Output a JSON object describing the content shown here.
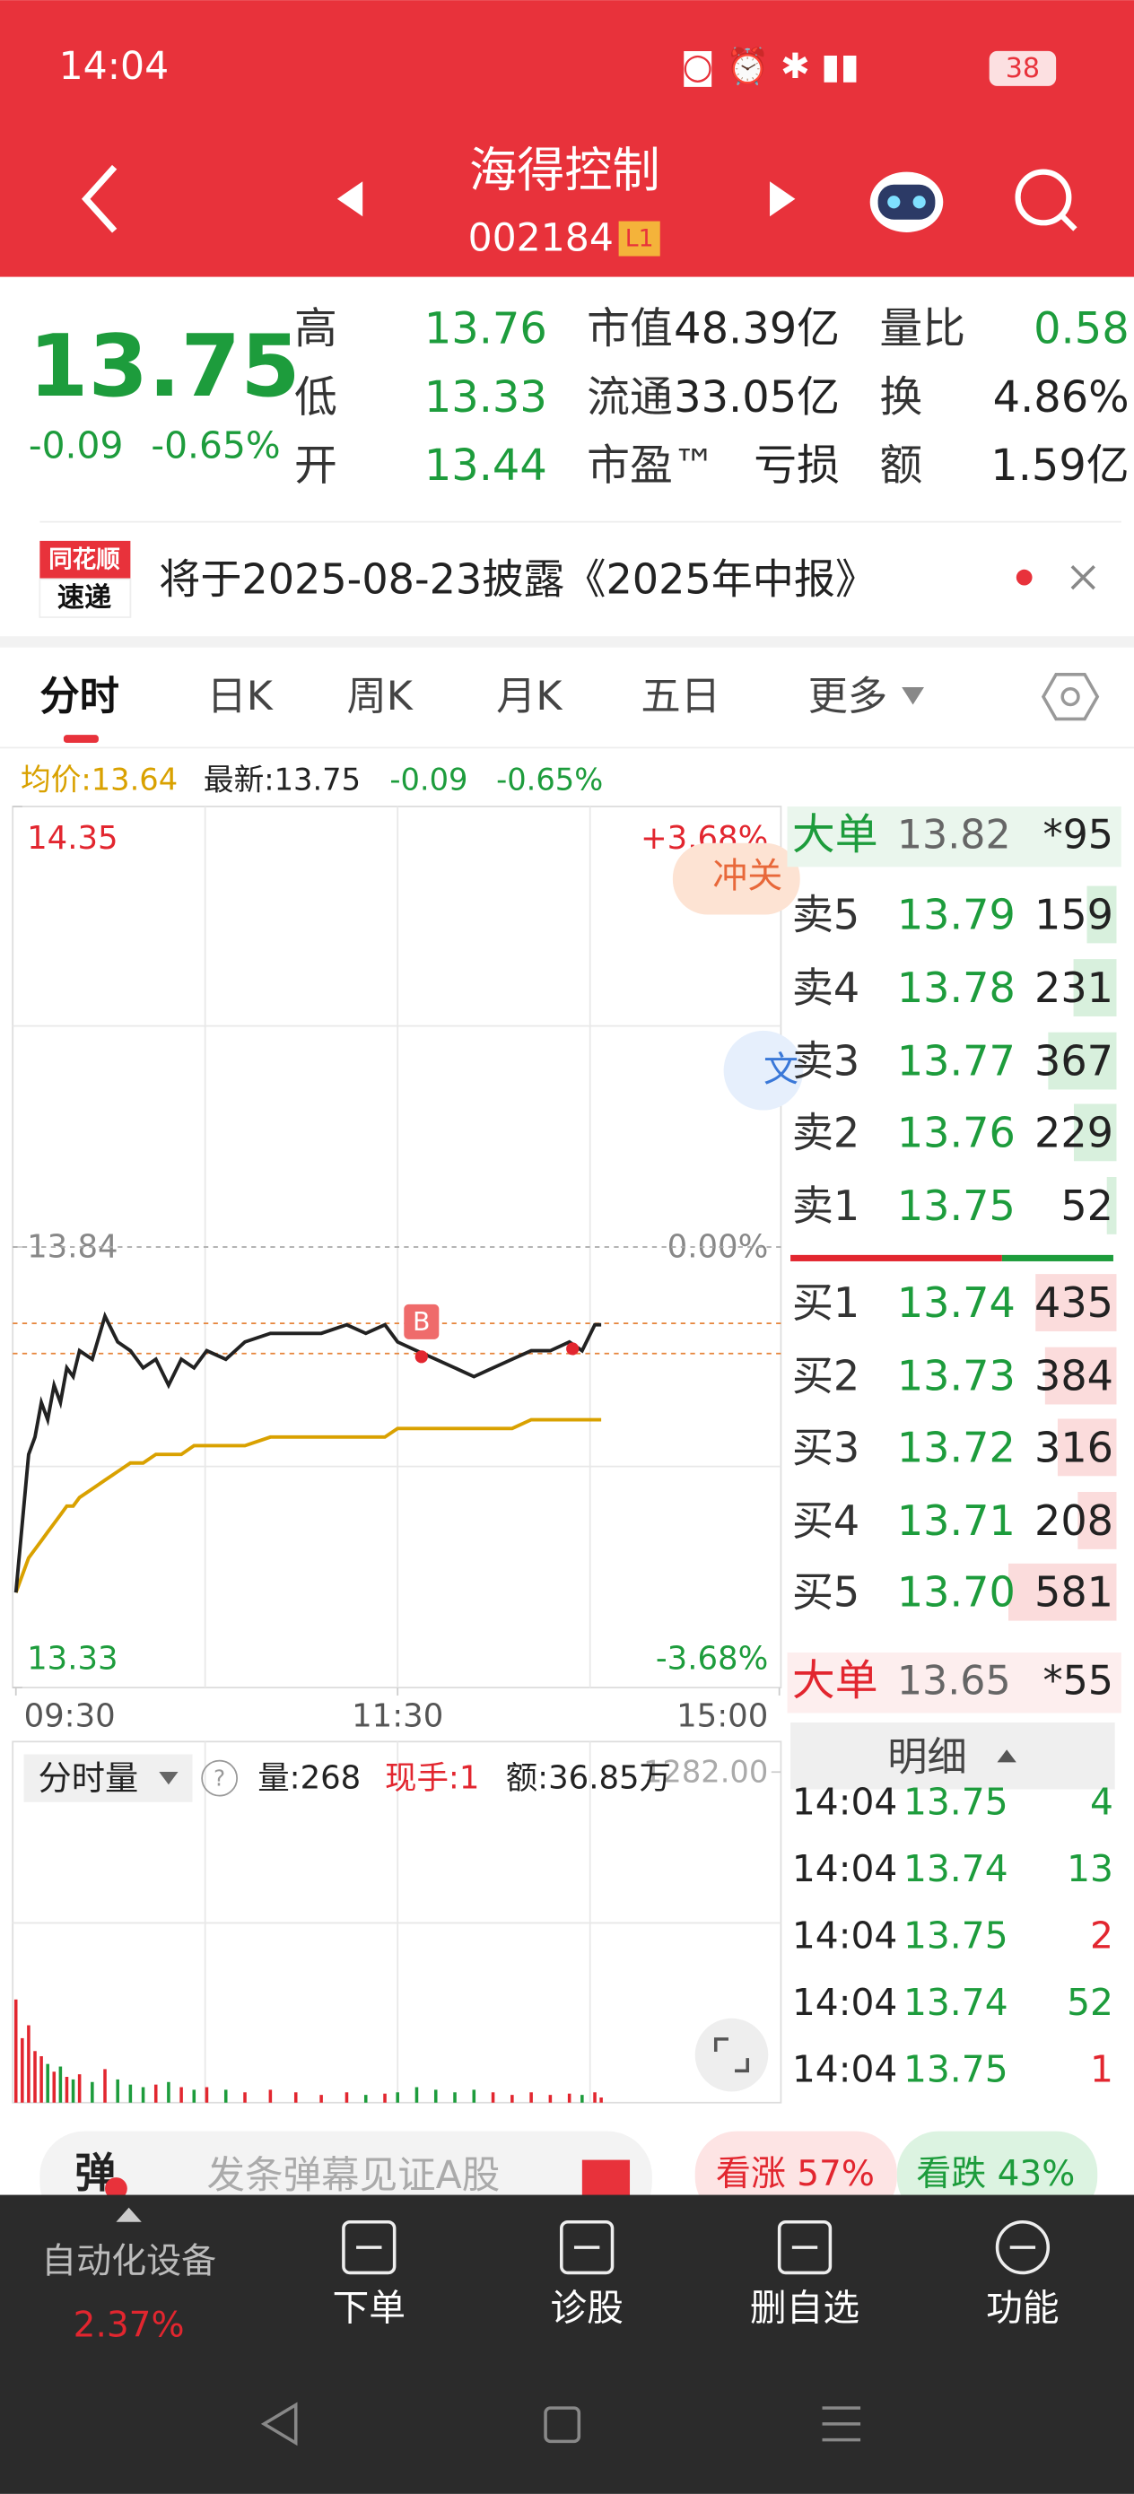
{
  "status_bar": {
    "time": "14:04",
    "battery": "38"
  },
  "header": {
    "name": "海得控制",
    "code": "002184",
    "level": "L1"
  },
  "quote": {
    "price": "13.75",
    "change": "-0.09",
    "change_pct": "-0.65%",
    "stats": [
      {
        "label": "高",
        "value": "13.76",
        "color": "#1d9c3c"
      },
      {
        "label": "低",
        "value": "13.33",
        "color": "#1d9c3c"
      },
      {
        "label": "开",
        "value": "13.44",
        "color": "#1d9c3c"
      },
      {
        "label": "市值",
        "value": "48.39亿",
        "color": "#222222"
      },
      {
        "label": "流通",
        "value": "33.05亿",
        "color": "#222222"
      },
      {
        "label": "市盈™",
        "value": "亏损",
        "color": "#222222"
      },
      {
        "label": "量比",
        "value": "0.58",
        "color": "#1d9c3c"
      },
      {
        "label": "换",
        "value": "4.86%",
        "color": "#222222"
      },
      {
        "label": "额",
        "value": "1.59亿",
        "color": "#222222"
      }
    ]
  },
  "news": {
    "badge": [
      "同花顺",
      "速递"
    ],
    "text": "将于2025-08-23披露《2025年中报》"
  },
  "tabs": [
    "分时",
    "日K",
    "周K",
    "月K",
    "五日",
    "更多"
  ],
  "info": {
    "avg": "均价:13.64",
    "latest": "最新:13.75",
    "change": "-0.09",
    "change_pct": "-0.65%"
  },
  "chart_data": {
    "type": "line",
    "x": [
      0,
      2,
      4,
      6,
      8,
      10,
      12,
      14,
      16,
      18,
      20,
      24,
      28,
      32,
      36,
      40,
      44,
      48,
      52,
      56,
      60,
      66,
      72,
      80,
      88,
      96,
      104,
      110,
      116,
      120,
      126,
      132,
      138,
      144,
      150,
      156,
      162,
      168,
      174,
      178,
      182,
      184
    ],
    "xlim": [
      0,
      240
    ],
    "xticks": [
      {
        "value": 0,
        "label": "09:30"
      },
      {
        "value": 120,
        "label": "11:30"
      },
      {
        "value": 240,
        "label": "15:00"
      }
    ],
    "ylim": [
      13.33,
      14.35
    ],
    "yticks": [
      13.33,
      13.84,
      14.35
    ],
    "y2lim": [
      -3.68,
      3.68
    ],
    "y2ticks": [
      {
        "value": -3.68,
        "label": "-3.68%"
      },
      {
        "value": 0,
        "label": "0.00%"
      },
      {
        "value": 3.68,
        "label": "+3.68%"
      }
    ],
    "series": [
      {
        "color": "#222222",
        "values": [
          13.44,
          13.52,
          13.6,
          13.62,
          13.66,
          13.64,
          13.68,
          13.66,
          13.7,
          13.69,
          13.72,
          13.71,
          13.76,
          13.73,
          13.72,
          13.7,
          13.71,
          13.68,
          13.71,
          13.7,
          13.72,
          13.71,
          13.73,
          13.74,
          13.74,
          13.74,
          13.75,
          13.74,
          13.75,
          13.73,
          13.72,
          13.71,
          13.7,
          13.69,
          13.7,
          13.71,
          13.72,
          13.72,
          13.73,
          13.72,
          13.75,
          13.75
        ]
      },
      {
        "color": "#d9a100",
        "values": [
          13.44,
          13.46,
          13.48,
          13.49,
          13.5,
          13.51,
          13.52,
          13.53,
          13.54,
          13.54,
          13.55,
          13.56,
          13.57,
          13.58,
          13.59,
          13.59,
          13.6,
          13.6,
          13.6,
          13.61,
          13.61,
          13.61,
          13.61,
          13.62,
          13.62,
          13.62,
          13.62,
          13.62,
          13.62,
          13.63,
          13.63,
          13.63,
          13.63,
          13.63,
          13.63,
          13.63,
          13.64,
          13.64,
          13.64,
          13.64,
          13.64,
          13.64
        ]
      }
    ],
    "trade_marker": "B",
    "badges": [
      "冲关",
      "文"
    ]
  },
  "volume_chart": {
    "type": "bar",
    "title": "分时量",
    "stats": [
      "量:268",
      "现手:1",
      "额:36.85万"
    ],
    "values": [
      400,
      250,
      300,
      200,
      180,
      150,
      120,
      140,
      100,
      90,
      110,
      80,
      130,
      90,
      70,
      60,
      70,
      80,
      60,
      50,
      60,
      50,
      40,
      50,
      40,
      30,
      40,
      30,
      35,
      40,
      60,
      50,
      40,
      50,
      40,
      30,
      40,
      30,
      35,
      30,
      40,
      20
    ],
    "ylim": [
      0,
      1400
    ],
    "yticks": [
      {
        "value": 1282,
        "label": "1282.00"
      }
    ]
  },
  "order_book": {
    "big_sell": {
      "label": "大单",
      "price": "13.82",
      "volume": "*95"
    },
    "sells": [
      {
        "label": "卖5",
        "price": "13.79",
        "volume": 159
      },
      {
        "label": "卖4",
        "price": "13.78",
        "volume": 231
      },
      {
        "label": "卖3",
        "price": "13.77",
        "volume": 367
      },
      {
        "label": "卖2",
        "price": "13.76",
        "volume": 229
      },
      {
        "label": "卖1",
        "price": "13.75",
        "volume": 52
      }
    ],
    "buys": [
      {
        "label": "买1",
        "price": "13.74",
        "volume": 435
      },
      {
        "label": "买2",
        "price": "13.73",
        "volume": 384
      },
      {
        "label": "买3",
        "price": "13.72",
        "volume": 316
      },
      {
        "label": "买4",
        "price": "13.71",
        "volume": 208
      },
      {
        "label": "买5",
        "price": "13.70",
        "volume": 581
      }
    ],
    "big_buy": {
      "label": "大单",
      "price": "13.65",
      "volume": "*55"
    }
  },
  "details": {
    "title": "明细",
    "rows": [
      {
        "time": "14:04",
        "price": "13.75",
        "volume": "4",
        "color": "#1d9c3c"
      },
      {
        "time": "14:04",
        "price": "13.74",
        "volume": "13",
        "color": "#1d9c3c"
      },
      {
        "time": "14:04",
        "price": "13.75",
        "volume": "2",
        "color": "#e2262f"
      },
      {
        "time": "14:04",
        "price": "13.74",
        "volume": "52",
        "color": "#1d9c3c"
      },
      {
        "time": "14:04",
        "price": "13.75",
        "volume": "1",
        "color": "#e2262f"
      }
    ]
  },
  "bottom": {
    "barrage_icon": "弹",
    "barrage_placeholder": "发条弹幕见证A股",
    "bull": "看涨 57%",
    "bear": "看跌 43%"
  },
  "nav": {
    "sector": "自动化设备",
    "sector_change": "2.37%",
    "items": [
      "下单",
      "诊股",
      "删自选",
      "功能"
    ]
  }
}
